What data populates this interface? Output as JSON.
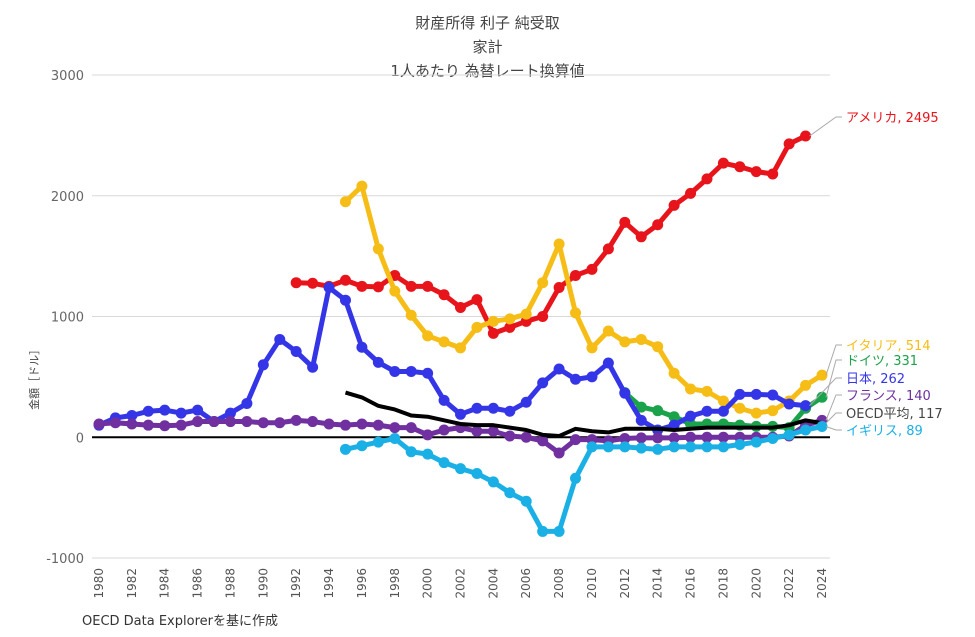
{
  "chart_data": {
    "type": "line",
    "title": [
      "財産所得 利子 純受取",
      "家計",
      "1人あたり 為替レート換算値"
    ],
    "ylabel": "金額［ドル］",
    "xlabel": "",
    "ylim": [
      -1000,
      3000
    ],
    "yticks": [
      -1000,
      0,
      1000,
      2000,
      3000
    ],
    "xlim": [
      1980,
      2024
    ],
    "xticks": [
      1980,
      1982,
      1984,
      1986,
      1988,
      1990,
      1992,
      1994,
      1996,
      1998,
      2000,
      2002,
      2004,
      2006,
      2008,
      2010,
      2012,
      2014,
      2016,
      2018,
      2020,
      2022,
      2024
    ],
    "grid": true,
    "series": [
      {
        "name": "アメリカ",
        "label": "アメリカ, 2495",
        "color": "#e8141b",
        "markers": true,
        "start": 1992,
        "values": [
          1280,
          1275,
          1250,
          1300,
          1250,
          1245,
          1340,
          1250,
          1250,
          1180,
          1075,
          1140,
          860,
          910,
          960,
          1000,
          1240,
          1340,
          1390,
          1560,
          1780,
          1660,
          1760,
          1920,
          2020,
          2140,
          2270,
          2240,
          2200,
          2180,
          2430,
          2495
        ]
      },
      {
        "name": "イタリア",
        "label": "イタリア, 514",
        "color": "#f6bd16",
        "markers": true,
        "start": 1995,
        "values": [
          1950,
          2080,
          1560,
          1210,
          1010,
          840,
          790,
          740,
          910,
          960,
          980,
          1020,
          1280,
          1600,
          1030,
          740,
          880,
          790,
          810,
          750,
          530,
          400,
          380,
          300,
          240,
          200,
          220,
          300,
          430,
          514
        ]
      },
      {
        "name": "ドイツ",
        "label": "ドイツ, 331",
        "color": "#1aa34a",
        "markers": true,
        "start": 2012,
        "values": [
          370,
          250,
          220,
          170,
          110,
          110,
          110,
          100,
          90,
          90,
          80,
          240,
          331
        ]
      },
      {
        "name": "日本",
        "label": "日本, 262",
        "color": "#3535e8",
        "markers": true,
        "start": 1980,
        "values": [
          100,
          160,
          180,
          215,
          225,
          200,
          225,
          130,
          200,
          280,
          600,
          810,
          710,
          580,
          1240,
          1135,
          745,
          620,
          545,
          545,
          530,
          305,
          190,
          240,
          240,
          215,
          290,
          450,
          565,
          480,
          500,
          615,
          365,
          140,
          60,
          100,
          175,
          215,
          215,
          355,
          355,
          350,
          275,
          262
        ]
      },
      {
        "name": "フランス",
        "label": "フランス, 140",
        "color": "#7030a0",
        "markers": true,
        "start": 1980,
        "values": [
          110,
          120,
          110,
          100,
          95,
          100,
          130,
          130,
          130,
          130,
          120,
          120,
          140,
          130,
          110,
          100,
          110,
          100,
          80,
          80,
          20,
          60,
          80,
          50,
          50,
          10,
          0,
          -30,
          -130,
          -20,
          -20,
          -30,
          -10,
          -5,
          -5,
          -5,
          0,
          0,
          0,
          0,
          0,
          0,
          10,
          100,
          140
        ]
      },
      {
        "name": "OECD平均",
        "label": "OECD平均, 117",
        "color": "#000000",
        "markers": false,
        "start": 1995,
        "values": [
          370,
          330,
          260,
          230,
          180,
          170,
          140,
          110,
          100,
          100,
          80,
          60,
          20,
          10,
          70,
          50,
          40,
          70,
          70,
          70,
          60,
          70,
          80,
          80,
          80,
          80,
          80,
          100,
          140,
          117
        ]
      },
      {
        "name": "イギリス",
        "label": "イギリス, 89",
        "color": "#1ab0e6",
        "markers": true,
        "start": 1995,
        "values": [
          -100,
          -70,
          -40,
          -10,
          -120,
          -140,
          -210,
          -260,
          -300,
          -370,
          -460,
          -530,
          -780,
          -780,
          -340,
          -80,
          -80,
          -80,
          -90,
          -100,
          -80,
          -80,
          -80,
          -80,
          -60,
          -40,
          -10,
          20,
          60,
          89
        ]
      }
    ]
  },
  "footer": "OECD Data Explorerを基に作成"
}
